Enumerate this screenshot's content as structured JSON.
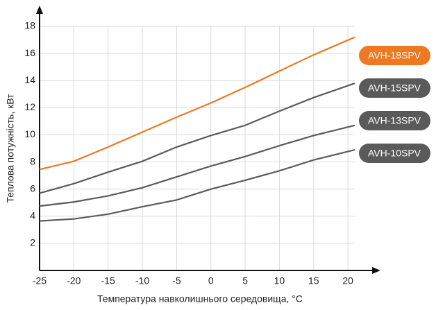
{
  "chart_data": {
    "type": "line",
    "x_label": "Температура навколишнього середовища, °C",
    "y_label": "Теплова потужність, кВт",
    "x": [
      -25,
      -20,
      -15,
      -10,
      -5,
      0,
      5,
      10,
      15,
      21
    ],
    "series": [
      {
        "name": "AVH-18SPV",
        "color": "#f07820",
        "values": [
          7.45,
          8.05,
          9.1,
          10.2,
          11.3,
          12.35,
          13.5,
          14.7,
          15.9,
          17.2
        ]
      },
      {
        "name": "AVH-15SPV",
        "color": "#5a5a5a",
        "values": [
          5.7,
          6.4,
          7.25,
          8.05,
          9.1,
          9.95,
          10.7,
          11.75,
          12.75,
          13.8
        ]
      },
      {
        "name": "AVH-13SPV",
        "color": "#5a5a5a",
        "values": [
          4.75,
          5.05,
          5.5,
          6.1,
          6.9,
          7.7,
          8.4,
          9.2,
          9.95,
          10.7
        ]
      },
      {
        "name": "AVH-10SPV",
        "color": "#5a5a5a",
        "values": [
          3.65,
          3.8,
          4.15,
          4.7,
          5.2,
          6.0,
          6.65,
          7.35,
          8.15,
          8.9
        ]
      }
    ],
    "xlim": [
      -25,
      21
    ],
    "ylim": [
      0,
      18
    ],
    "xticks": [
      -25,
      -20,
      -15,
      -10,
      -5,
      0,
      5,
      10,
      15,
      20
    ],
    "yticks": [
      2,
      4,
      6,
      8,
      10,
      12,
      14,
      16,
      18
    ],
    "grid": true
  }
}
